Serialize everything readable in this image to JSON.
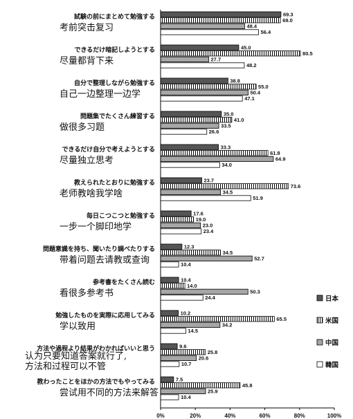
{
  "chart_data": {
    "type": "bar",
    "orientation": "horizontal",
    "categories": [
      {
        "ja": "試験の前にまとめて勉強する",
        "zh": [
          "考前突击复习"
        ]
      },
      {
        "ja": "できるだけ暗記しようとする",
        "zh": [
          "尽量都背下来"
        ]
      },
      {
        "ja": "自分で整理しながら勉強する",
        "zh": [
          "自己一边整理一边学"
        ]
      },
      {
        "ja": "問題集でたくさん練習する",
        "zh": [
          "做很多习题"
        ]
      },
      {
        "ja": "できるだけ自分で考えようとする",
        "zh": [
          "尽量独立思考"
        ]
      },
      {
        "ja": "教えられたとおりに勉強する",
        "zh": [
          "老师教啥我学啥"
        ]
      },
      {
        "ja": "毎日こつこつと勉強する",
        "zh": [
          "一步一个脚印地学"
        ]
      },
      {
        "ja": "問題意識を持ち、聞いたり調べたりする",
        "zh": [
          "带着问题去请教或查询"
        ]
      },
      {
        "ja": "参考書をたくさん読む",
        "zh": [
          "看很多参考书"
        ]
      },
      {
        "ja": "勉強したものを実際に応用してみる",
        "zh": [
          "学以致用"
        ]
      },
      {
        "ja": "方法や過程より結果がわかればいいと思う",
        "zh": [
          "认为只要知道答案就行了,",
          "方法和过程可以不管"
        ]
      },
      {
        "ja": "教わったことをほかの方法でもやってみる",
        "zh": [
          "尝试用不同的方法来解答"
        ]
      }
    ],
    "series": [
      {
        "name": "日本",
        "color": "#555555",
        "pattern": "solid",
        "values": [
          69.3,
          45.0,
          38.8,
          35.0,
          33.3,
          23.7,
          17.6,
          12.3,
          10.4,
          10.2,
          9.6,
          7.5
        ]
      },
      {
        "name": "米国",
        "color": "#000000",
        "pattern": "vertical-stripes",
        "values": [
          69.0,
          80.5,
          55.0,
          41.0,
          61.8,
          73.6,
          19.0,
          34.5,
          14.0,
          65.5,
          25.8,
          45.8
        ]
      },
      {
        "name": "中国",
        "color": "#a6a6a6",
        "pattern": "solid",
        "values": [
          48.4,
          27.7,
          50.4,
          33.5,
          64.9,
          34.5,
          23.0,
          52.7,
          50.3,
          34.2,
          20.6,
          25.9
        ]
      },
      {
        "name": "韓国",
        "color": "#ffffff",
        "pattern": "outline",
        "values": [
          56.4,
          48.2,
          47.1,
          26.6,
          34.0,
          51.9,
          23.4,
          10.4,
          24.4,
          14.5,
          10.7,
          10.4
        ]
      }
    ],
    "value_labels": [
      [
        "69.3",
        "69.0",
        "48.4",
        "56.4"
      ],
      [
        "45.0",
        "80.5",
        "27.7",
        "48.2"
      ],
      [
        "38.8",
        "55.0",
        "50.4",
        "47.1"
      ],
      [
        "35.0",
        "41.0",
        "33.5",
        "26.6"
      ],
      [
        "33.3",
        "61.8",
        "64.9",
        "34.0"
      ],
      [
        "23.7",
        "73.6",
        "34.5",
        "51.9"
      ],
      [
        "17.6",
        "19.0",
        "23.0",
        "23.4"
      ],
      [
        "12.3",
        "34.5",
        "52.7",
        "10.4"
      ],
      [
        "10.4",
        "14.0",
        "50.3",
        "24.4"
      ],
      [
        "10.2",
        "65.5",
        "34.2",
        "14.5"
      ],
      [
        "9.6",
        "25.8",
        "20.6",
        "10.7"
      ],
      [
        "7.5",
        "45.8",
        "25.9",
        "10.4"
      ]
    ],
    "x_range": [
      0,
      100
    ],
    "x_ticks": [
      "0%",
      "20%",
      "40%",
      "60%",
      "80%",
      "100%"
    ],
    "grid": false,
    "legend_position": "right"
  }
}
